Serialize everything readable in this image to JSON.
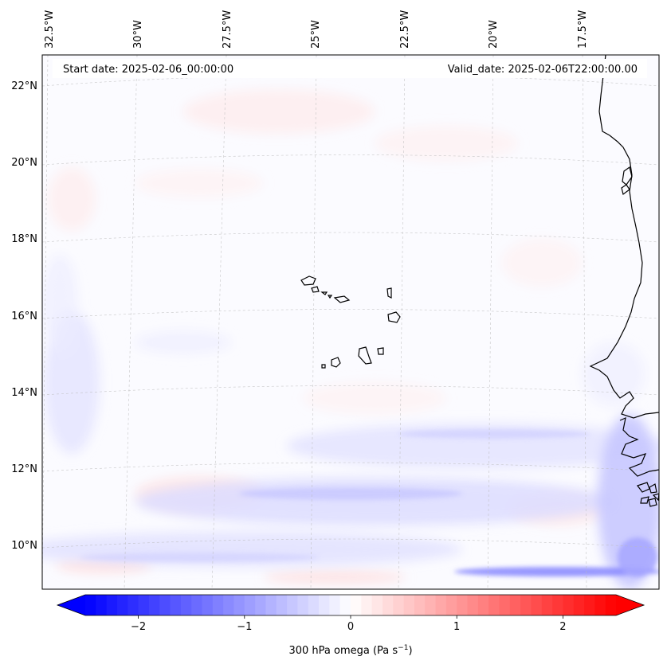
{
  "map": {
    "start_date": "Start date: 2025-02-06_00:00:00",
    "valid_date": "Valid_date: 2025-02-06T22:00:00.00",
    "lon_labels": [
      "32.5°W",
      "30°W",
      "27.5°W",
      "25°W",
      "22.5°W",
      "20°W",
      "17.5°W"
    ],
    "lat_labels": [
      "22°N",
      "20°N",
      "18°N",
      "16°N",
      "14°N",
      "12°N",
      "10°N"
    ],
    "lat_values": [
      22,
      20,
      18,
      16,
      14,
      12,
      10
    ],
    "lon_values": [
      -32.5,
      -30,
      -27.5,
      -25,
      -22.5,
      -20,
      -17.5
    ]
  },
  "colorbar": {
    "label": "300 hPa omega (Pa s",
    "label_exp": "−1",
    "label_close": ")",
    "tick_labels": [
      "−2",
      "−1",
      "0",
      "1",
      "2"
    ],
    "tick_values": [
      -2,
      -1,
      0,
      1,
      2
    ],
    "range": [
      -2.5,
      2.5
    ],
    "min_color": "#0000ff",
    "mid_color": "#ffffff",
    "max_color": "#ff0000"
  }
}
